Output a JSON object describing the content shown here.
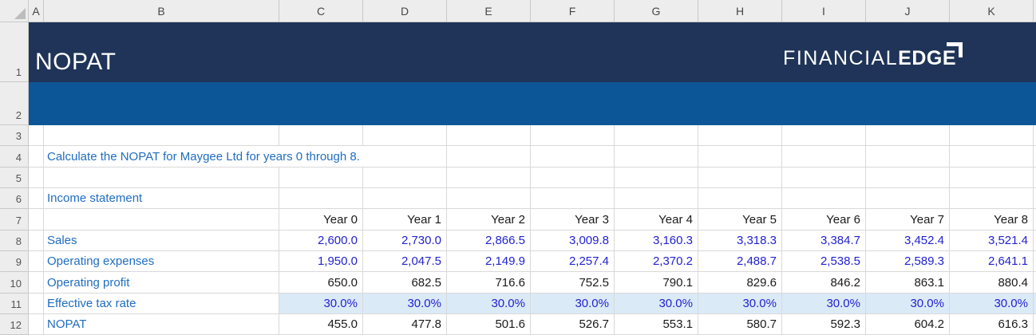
{
  "banner": {
    "title": "NOPAT",
    "logo": {
      "text_thin": "FINANCIAL",
      "text_bold": "EDGE"
    }
  },
  "note": "Calculate the NOPAT for Maygee Ltd for years 0 through 8.",
  "section_title": "Income statement",
  "column_headers": [
    "A",
    "B",
    "C",
    "D",
    "E",
    "F",
    "G",
    "H",
    "I",
    "J",
    "K"
  ],
  "row_headers": [
    "1",
    "2",
    "3",
    "4",
    "5",
    "6",
    "7",
    "8",
    "9",
    "10",
    "11",
    "12"
  ],
  "table": {
    "year_headers": [
      "Year 0",
      "Year 1",
      "Year 2",
      "Year 3",
      "Year 4",
      "Year 5",
      "Year 6",
      "Year 7",
      "Year 8"
    ],
    "rows": [
      {
        "label": "Sales",
        "style": "input",
        "highlight": false,
        "values": [
          "2,600.0",
          "2,730.0",
          "2,866.5",
          "3,009.8",
          "3,160.3",
          "3,318.3",
          "3,384.7",
          "3,452.4",
          "3,521.4"
        ]
      },
      {
        "label": "Operating expenses",
        "style": "input",
        "highlight": false,
        "values": [
          "1,950.0",
          "2,047.5",
          "2,149.9",
          "2,257.4",
          "2,370.2",
          "2,488.7",
          "2,538.5",
          "2,589.3",
          "2,641.1"
        ]
      },
      {
        "label": "Operating profit",
        "style": "calculated",
        "highlight": false,
        "values": [
          "650.0",
          "682.5",
          "716.6",
          "752.5",
          "790.1",
          "829.6",
          "846.2",
          "863.1",
          "880.4"
        ]
      },
      {
        "label": "Effective tax rate",
        "style": "input",
        "highlight": true,
        "values": [
          "30.0%",
          "30.0%",
          "30.0%",
          "30.0%",
          "30.0%",
          "30.0%",
          "30.0%",
          "30.0%",
          "30.0%"
        ]
      },
      {
        "label": "NOPAT",
        "style": "calculated",
        "highlight": false,
        "values": [
          "455.0",
          "477.8",
          "501.6",
          "526.7",
          "553.1",
          "580.7",
          "592.3",
          "604.2",
          "616.3"
        ]
      }
    ]
  },
  "colors": {
    "banner_dark": "#1F3458",
    "banner_light": "#0C5596",
    "highlight_fill": "#DBEAF7",
    "label_text": "#1F6DC1",
    "input_text": "#2222D2",
    "calculated_text": "#1A1A1A",
    "gridline": "#D9D9D9"
  }
}
